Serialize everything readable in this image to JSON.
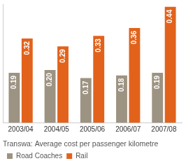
{
  "chart_data": {
    "type": "bar",
    "title": "Transwa: Average cost per passenger kilometre",
    "categories": [
      "2003/04",
      "2004/05",
      "2005/06",
      "2006/07",
      "2007/08"
    ],
    "series": [
      {
        "name": "Road Coaches",
        "color": "#9d9382",
        "values": [
          0.19,
          0.2,
          0.17,
          0.18,
          0.19
        ],
        "value_labels": [
          "0.19",
          "0.20",
          "0.17",
          "0.18",
          "0.19"
        ]
      },
      {
        "name": "Rail",
        "color": "#e2621b",
        "values": [
          0.32,
          0.29,
          0.33,
          0.36,
          0.44
        ],
        "value_labels": [
          "0.32",
          "0.29",
          "0.33",
          "0.36",
          "0.44"
        ]
      }
    ],
    "ylim": [
      0,
      0.45
    ],
    "grid": false,
    "legend": "bottom",
    "data_labels": true,
    "tick_labels": "x"
  }
}
